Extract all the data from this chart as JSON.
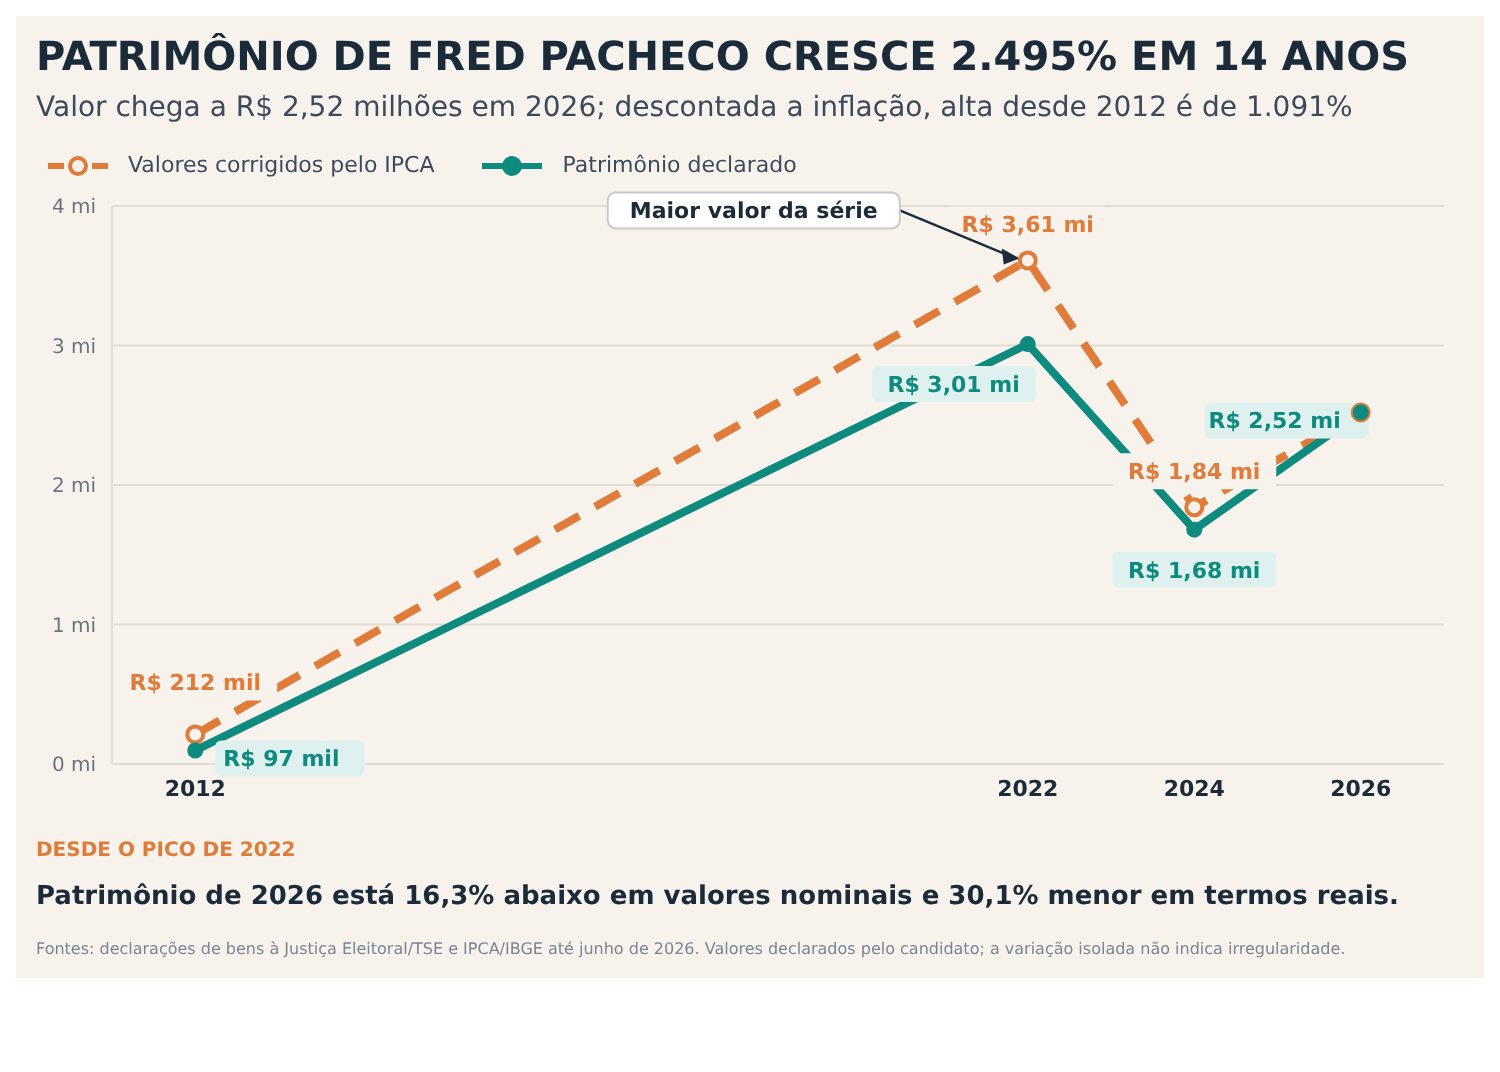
{
  "chart_data": {
    "type": "line",
    "title": "PATRIMÔNIO DE FRED PACHECO CRESCE 2.495% EM 14 ANOS",
    "subtitle": "Valor chega a R$ 2,52 milhões em 2026; descontada a inflação, alta desde 2012 é de 1.091%",
    "x": [
      2012,
      2022,
      2024,
      2026
    ],
    "xlim": [
      2011,
      2027
    ],
    "xticks": [
      2012,
      2022,
      2024,
      2026
    ],
    "ylim": [
      0,
      4
    ],
    "yticks": [
      {
        "value": 0,
        "label": "0 mi"
      },
      {
        "value": 1,
        "label": "1 mi"
      },
      {
        "value": 2,
        "label": "2 mi"
      },
      {
        "value": 3,
        "label": "3 mi"
      },
      {
        "value": 4,
        "label": "4 mi"
      }
    ],
    "grid": "y",
    "legend": "top left",
    "series": [
      {
        "name": "Valores corrigidos pelo IPCA",
        "color": "#e07b39",
        "values": [
          0.212,
          3.61,
          1.84,
          2.52
        ],
        "line_style": "dashed",
        "marker": "circle",
        "value_labels": [
          "R$ 212 mil",
          "R$ 3,61 mi",
          "R$ 1,84 mi",
          null
        ]
      },
      {
        "name": "Patrimônio declarado",
        "color": "#0e8a7e",
        "values": [
          0.097,
          3.01,
          1.68,
          2.52
        ],
        "line_style": "solid",
        "marker": "circle",
        "value_labels": [
          "R$ 97 mil",
          "R$ 3,01 mi",
          "R$ 1,68 mi",
          "R$ 2,52 mi"
        ]
      }
    ],
    "annotations": [
      {
        "text": "Maior valor da série",
        "x": 2022,
        "y": 3.61
      },
      "DESDE O PICO DE 2022",
      "Patrimônio de 2026 está 16,3% abaixo em valores nominais e 30,1% menor em termos reais.",
      "Fontes: declarações de bens à Justiça Eleitoral/TSE e IPCA/IBGE até junho de 2026. Valores declarados pelo candidato; a variação isolada não indica irregularidade."
    ]
  }
}
